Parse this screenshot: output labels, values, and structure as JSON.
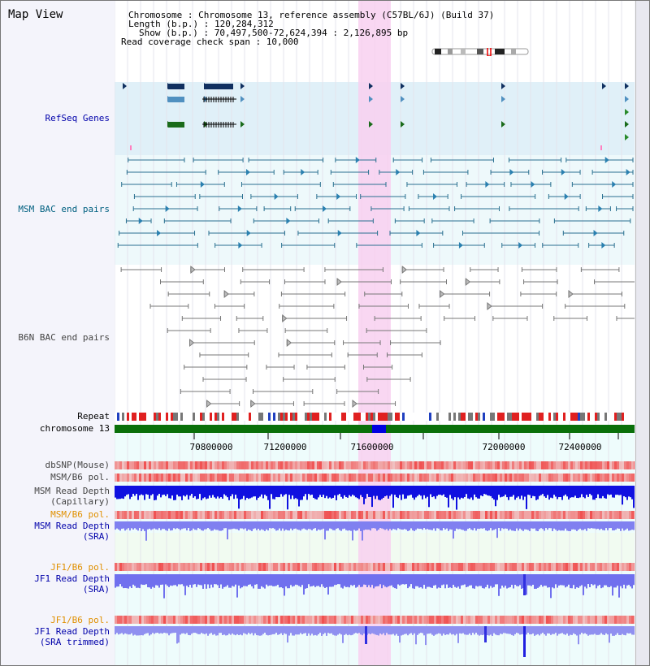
{
  "title": "Map View",
  "info": {
    "chromosome": "Chromosome   : Chromosome 13, reference assembly (C57BL/6J) (Build 37)",
    "length": "Length (b.p.) : 120,284,312",
    "show": "Show (b.p.) : 70,497,500-72,624,394 : 2,126,895 bp",
    "span": "Read coverage check span : 10,000"
  },
  "tracks": {
    "refseq": "RefSeq Genes",
    "msm_bac": "MSM BAC end pairs",
    "b6n_bac": "B6N BAC end pairs",
    "repeat": "Repeat",
    "chrom": "chromosome 13",
    "dbsnp": "dbSNP(Mouse)",
    "msm_pol": "MSM/B6 pol.",
    "msm_depth_cap_1": "MSM Read Depth",
    "msm_depth_cap_2": "(Capillary)",
    "msm_pol_sra": "MSM/B6 pol.",
    "msm_depth_sra_1": "MSM Read Depth",
    "msm_depth_sra_2": "(SRA)",
    "jf1_pol": "JF1/B6 pol.",
    "jf1_depth_1": "JF1 Read Depth",
    "jf1_depth_2": "(SRA)",
    "jf1_pol_t": "JF1/B6 pol.",
    "jf1_depth_t_1": "JF1 Read Depth",
    "jf1_depth_t_2": "(SRA trimmed)"
  },
  "axis": [
    "70800000",
    "71200000",
    "71600000",
    "72000000",
    "72400000"
  ],
  "colors": {
    "refseq_label": "#0000aa",
    "msm_label": "#006080",
    "b6n_label": "#444444",
    "orange_label": "#e09000",
    "blue_label": "#0000aa",
    "highlight": "#f8d0f0"
  }
}
